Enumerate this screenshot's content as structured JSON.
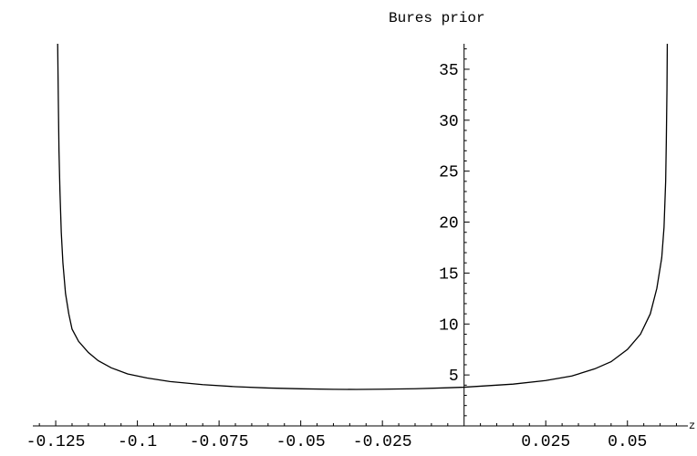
{
  "chart_data": {
    "type": "line",
    "title": "Bures prior",
    "xlabel": "z",
    "ylabel": "",
    "xlim": [
      -0.132,
      0.0685
    ],
    "ylim": [
      0,
      37.5
    ],
    "x_ticks": [
      -0.125,
      -0.1,
      -0.075,
      -0.05,
      -0.025,
      0.025,
      0.05
    ],
    "x_tick_labels": [
      "-0.125",
      "-0.1",
      "-0.075",
      "-0.05",
      "-0.025",
      "0.025",
      "0.05"
    ],
    "y_ticks": [
      5,
      10,
      15,
      20,
      25,
      30,
      35
    ],
    "y_tick_labels": [
      "5",
      "10",
      "15",
      "20",
      "25",
      "30",
      "35"
    ],
    "grid": false,
    "series": [
      {
        "name": "",
        "x": [
          -0.1244,
          -0.1242,
          -0.124,
          -0.1237,
          -0.1233,
          -0.1228,
          -0.122,
          -0.121,
          -0.12,
          -0.118,
          -0.115,
          -0.112,
          -0.108,
          -0.103,
          -0.097,
          -0.09,
          -0.08,
          -0.07,
          -0.06,
          -0.05,
          -0.04,
          -0.033,
          -0.025,
          -0.015,
          -0.005,
          0.0,
          0.005,
          0.015,
          0.025,
          0.033,
          0.04,
          0.045,
          0.05,
          0.054,
          0.057,
          0.059,
          0.0605,
          0.0612,
          0.0617,
          0.0619,
          0.0621,
          0.0622
        ],
        "y": [
          37.5,
          32,
          27,
          23,
          19,
          16,
          13,
          11,
          9.5,
          8.3,
          7.2,
          6.4,
          5.7,
          5.1,
          4.7,
          4.35,
          4.05,
          3.85,
          3.72,
          3.64,
          3.59,
          3.58,
          3.6,
          3.65,
          3.74,
          3.8,
          3.9,
          4.1,
          4.45,
          4.9,
          5.6,
          6.3,
          7.5,
          9.0,
          11.0,
          13.5,
          16.5,
          19.5,
          24.0,
          28.0,
          33.0,
          37.5
        ]
      }
    ]
  }
}
